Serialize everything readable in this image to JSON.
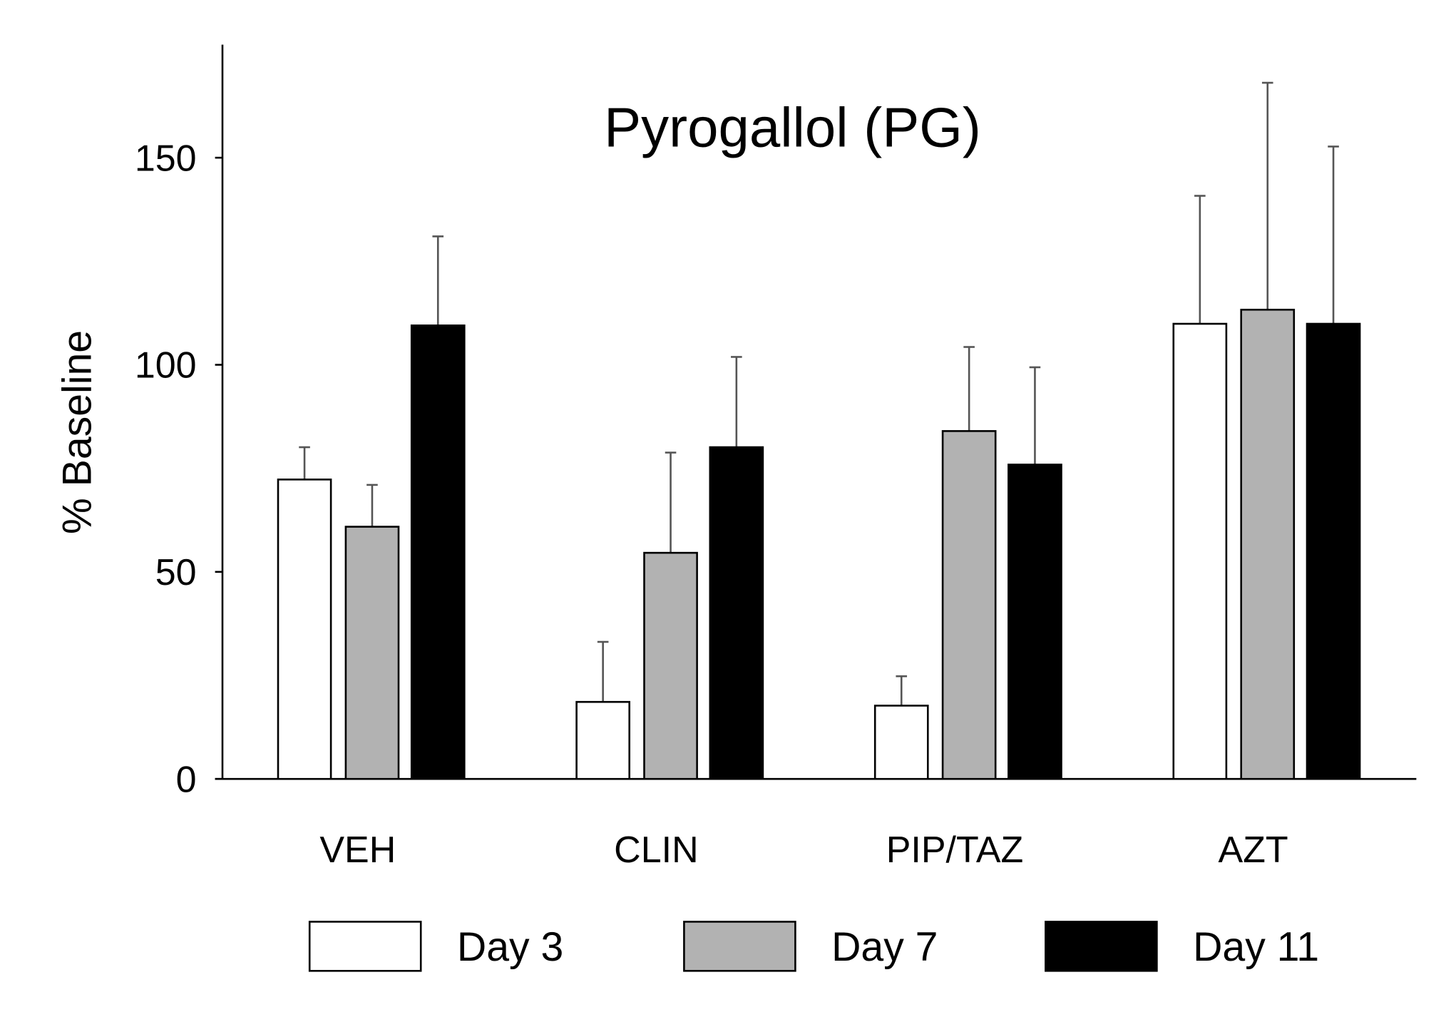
{
  "chart_data": {
    "type": "bar",
    "title": "Pyrogallol (PG)",
    "xlabel": "",
    "ylabel": "% Baseline",
    "ylim": [
      0,
      175
    ],
    "yticks": [
      0,
      50,
      100,
      150
    ],
    "ytick_labels": [
      "0",
      "50",
      "100",
      "150"
    ],
    "grid": false,
    "legend_position": "bottom",
    "categories": [
      "VEH",
      "CLIN",
      "PIP/TAZ",
      "AZT"
    ],
    "series": [
      {
        "name": "Day 3",
        "color": "#ffffff",
        "values": [
          72.3,
          18.6,
          17.7,
          109.9
        ],
        "error_upper": [
          80.1,
          33.1,
          24.8,
          140.8
        ]
      },
      {
        "name": "Day 7",
        "color": "#b2b2b2",
        "values": [
          60.9,
          54.6,
          84.0,
          113.3
        ],
        "error_upper": [
          71.0,
          78.8,
          104.3,
          168.1
        ]
      },
      {
        "name": "Day 11",
        "color": "#000000",
        "values": [
          109.5,
          80.1,
          75.9,
          109.9
        ],
        "error_upper": [
          131.0,
          101.9,
          99.4,
          152.7
        ]
      }
    ]
  }
}
